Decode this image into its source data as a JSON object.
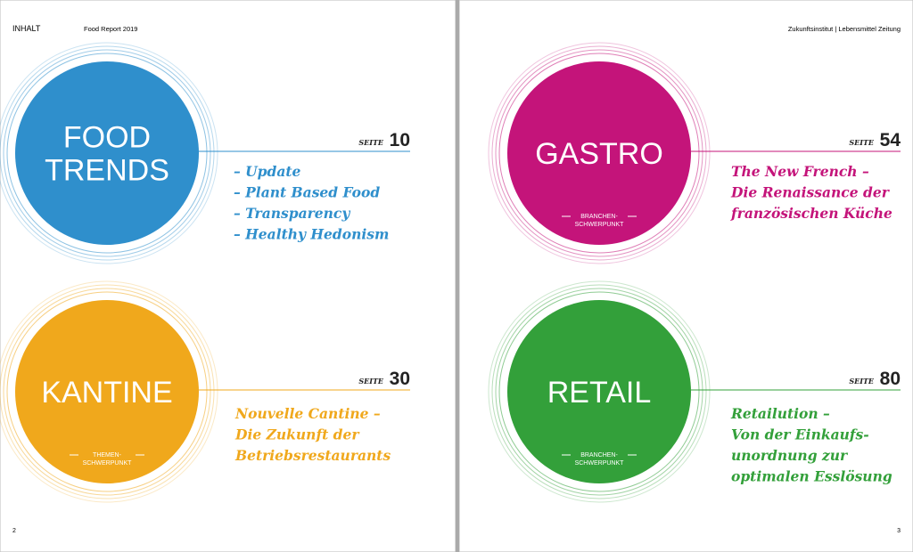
{
  "header": {
    "left_label": "INHALT",
    "left_title": "Food Report 2019",
    "right_title": "Zukunftsinstitut | Lebensmittel Zeitung"
  },
  "page_numbers": [
    "2",
    "3"
  ],
  "sections": [
    {
      "title_lines": [
        "FOOD",
        "TRENDS"
      ],
      "page_label": "SEITE",
      "page": 10,
      "color": "#2f8fcc",
      "tag_lines": [],
      "items": [
        "– Update",
        "– Plant Based Food",
        "– Transparency",
        "– Healthy Hedonism"
      ]
    },
    {
      "title_lines": [
        "KANTINE"
      ],
      "page_label": "SEITE",
      "page": 30,
      "color": "#f0a81c",
      "tag_lines": [
        "THEMEN-",
        "SCHWERPUNKT"
      ],
      "items": [
        "Nouvelle Cantine –",
        "Die Zukunft der",
        "Betriebsrestaurants"
      ]
    },
    {
      "title_lines": [
        "GASTRO"
      ],
      "page_label": "SEITE",
      "page": 54,
      "color": "#c4147a",
      "tag_lines": [
        "BRANCHEN-",
        "SCHWERPUNKT"
      ],
      "items": [
        "The New French –",
        "Die Renaissance der",
        "französischen Küche"
      ]
    },
    {
      "title_lines": [
        "RETAIL"
      ],
      "page_label": "SEITE",
      "page": 80,
      "color": "#33a03a",
      "tag_lines": [
        "BRANCHEN-",
        "SCHWERPUNKT"
      ],
      "items": [
        "Retailution –",
        "Von der Einkaufs-",
        "unordnung zur",
        "optimalen Esslösung"
      ]
    }
  ]
}
